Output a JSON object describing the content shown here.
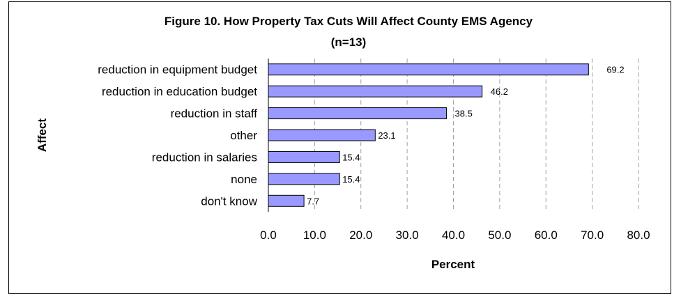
{
  "chart_data": {
    "type": "bar",
    "orientation": "horizontal",
    "title": "Figure 10.  How Property Tax Cuts Will Affect County EMS Agency",
    "subtitle": "(n=13)",
    "xlabel": "Percent",
    "ylabel": "Affect",
    "categories": [
      "reduction in equipment budget",
      "reduction in education budget",
      "reduction in staff",
      "other",
      "reduction in salaries",
      "none",
      "don't know"
    ],
    "values": [
      69.2,
      46.2,
      38.5,
      23.1,
      15.4,
      15.4,
      7.7
    ],
    "value_labels": [
      "69.2",
      "46.2",
      "38.5",
      "23.1",
      "15.4",
      "15.4",
      "7.7"
    ],
    "xlim": [
      0,
      80
    ],
    "xticks": [
      "0.0",
      "10.0",
      "20.0",
      "30.0",
      "40.0",
      "50.0",
      "60.0",
      "70.0",
      "80.0"
    ],
    "grid": true,
    "legend": "none",
    "bar_color": "#9999ff",
    "bar_edge_color": "#000000",
    "grid_color": "#a0a0a0"
  }
}
